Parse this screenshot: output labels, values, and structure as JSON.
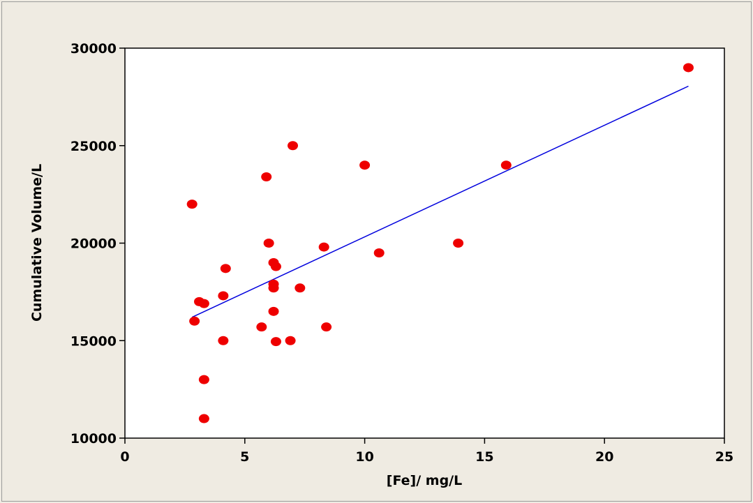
{
  "chart_data": {
    "type": "scatter",
    "title": "",
    "xlabel": "[Fe]/ mg/L",
    "ylabel": "Cumulative Volume/L",
    "xlim": [
      0,
      25
    ],
    "ylim": [
      10000,
      30000
    ],
    "x_ticks": [
      "0",
      "5",
      "10",
      "15",
      "20",
      "25"
    ],
    "y_ticks": [
      "10000",
      "15000",
      "20000",
      "25000",
      "30000"
    ],
    "grid": false,
    "legend": "none",
    "colors": {
      "points": "#ee0000",
      "fit_line": "#0000dd",
      "plot_bg": "#ffffff",
      "page_bg": "#efebe2"
    },
    "series": [
      {
        "points": [
          {
            "x": 2.8,
            "y": 22000
          },
          {
            "x": 2.9,
            "y": 16000
          },
          {
            "x": 3.1,
            "y": 17000
          },
          {
            "x": 3.3,
            "y": 16900
          },
          {
            "x": 3.3,
            "y": 13000
          },
          {
            "x": 3.3,
            "y": 11000
          },
          {
            "x": 4.1,
            "y": 17300
          },
          {
            "x": 4.1,
            "y": 15000
          },
          {
            "x": 4.2,
            "y": 18700
          },
          {
            "x": 5.7,
            "y": 15700
          },
          {
            "x": 5.9,
            "y": 23400
          },
          {
            "x": 6.0,
            "y": 20000
          },
          {
            "x": 6.2,
            "y": 19000
          },
          {
            "x": 6.3,
            "y": 18800
          },
          {
            "x": 6.2,
            "y": 17900
          },
          {
            "x": 6.2,
            "y": 17700
          },
          {
            "x": 6.2,
            "y": 16500
          },
          {
            "x": 6.3,
            "y": 14950
          },
          {
            "x": 6.9,
            "y": 15000
          },
          {
            "x": 7.0,
            "y": 25000
          },
          {
            "x": 7.3,
            "y": 17700
          },
          {
            "x": 8.3,
            "y": 19800
          },
          {
            "x": 8.4,
            "y": 15700
          },
          {
            "x": 10.0,
            "y": 24000
          },
          {
            "x": 10.6,
            "y": 19500
          },
          {
            "x": 13.9,
            "y": 20000
          },
          {
            "x": 15.9,
            "y": 24000
          },
          {
            "x": 23.5,
            "y": 29000
          }
        ]
      }
    ],
    "fit_line": {
      "x": [
        2.8,
        23.5
      ],
      "y": [
        16200,
        28050
      ]
    }
  }
}
